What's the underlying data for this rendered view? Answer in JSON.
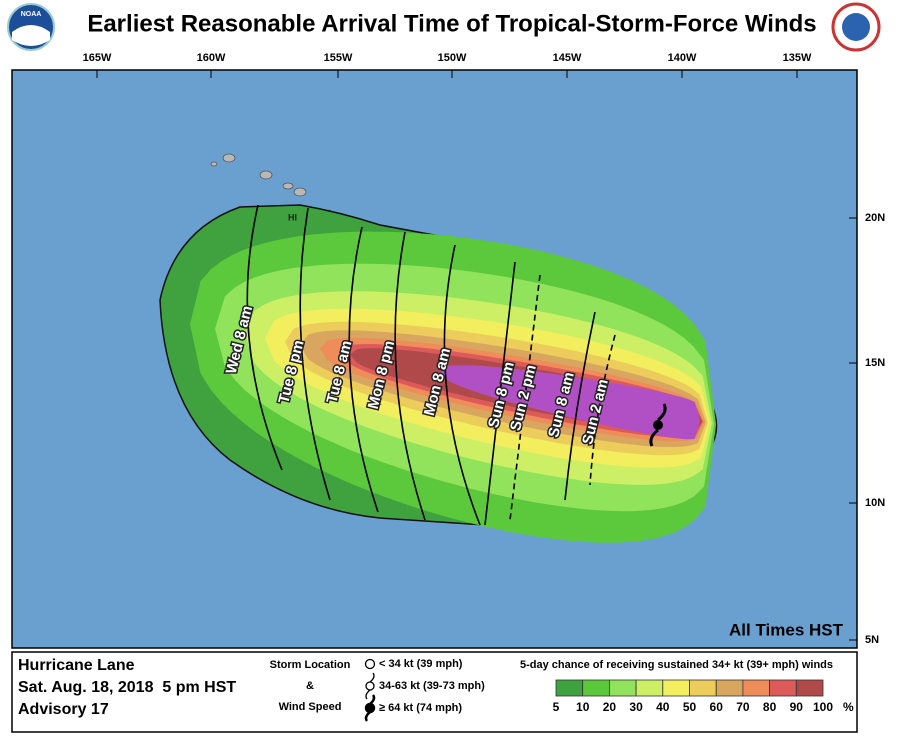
{
  "header": {
    "title": "Earliest Reasonable Arrival Time of Tropical-Storm-Force Winds",
    "logo_left": "NOAA"
  },
  "map": {
    "longitudes": [
      "165W",
      "160W",
      "155W",
      "150W",
      "145W",
      "140W",
      "135W"
    ],
    "latitudes": [
      "20N",
      "15N",
      "10N",
      "5N"
    ],
    "island_label": "HI",
    "note": "All Times HST",
    "ocean_color": "#6aa0d0",
    "time_contours": [
      {
        "label": "Wed 8 am",
        "style": "solid"
      },
      {
        "label": "Tue 8 pm",
        "style": "solid"
      },
      {
        "label": "Tue 8 am",
        "style": "solid"
      },
      {
        "label": "Mon 8 pm",
        "style": "solid"
      },
      {
        "label": "Mon 8 am",
        "style": "solid"
      },
      {
        "label": "Sun 8 pm",
        "style": "solid"
      },
      {
        "label": "Sun 2 pm",
        "style": "dashed"
      },
      {
        "label": "Sun 8 am",
        "style": "solid"
      },
      {
        "label": "Sun 2 am",
        "style": "dashed"
      }
    ]
  },
  "legend": {
    "storm": [
      "Hurricane Lane",
      "Sat. Aug. 18, 2018  5 pm HST",
      "Advisory 17"
    ],
    "symbol_title": [
      "Storm Location",
      "&",
      "Wind Speed"
    ],
    "symbols": [
      "< 34 kt (39 mph)",
      "34-63 kt (39-73 mph)",
      "≥ 64 kt (74 mph)"
    ],
    "scale_title": "5-day chance of receiving sustained 34+ kt (39+ mph) winds",
    "scale_labels": [
      5,
      10,
      20,
      30,
      40,
      50,
      60,
      70,
      80,
      90,
      100
    ],
    "unit": "%",
    "scale_colors": [
      "#3fa23f",
      "#5cc83c",
      "#90e35a",
      "#ccef66",
      "#f2ee5e",
      "#eccd5c",
      "#d9a660",
      "#ee8c5a",
      "#dd5a5a",
      "#b04a4a",
      "#b050c4"
    ]
  }
}
